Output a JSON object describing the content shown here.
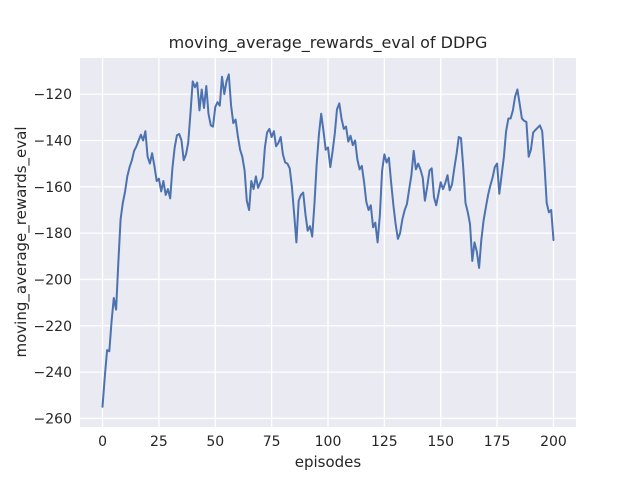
{
  "chart_data": {
    "type": "line",
    "title": "moving_average_rewards_eval of DDPG",
    "xlabel": "episodes",
    "ylabel": "moving_average_rewards_eval",
    "xlim": [
      -10,
      210
    ],
    "ylim": [
      -263.7,
      -104.4
    ],
    "x_ticks": [
      0,
      25,
      50,
      75,
      100,
      125,
      150,
      175,
      200
    ],
    "x_tick_labels": [
      "0",
      "25",
      "50",
      "75",
      "100",
      "125",
      "150",
      "175",
      "200"
    ],
    "y_ticks": [
      -120,
      -140,
      -160,
      -180,
      -200,
      -220,
      -240,
      -260
    ],
    "y_tick_labels": [
      "−120",
      "−140",
      "−160",
      "−180",
      "−200",
      "−220",
      "−240",
      "−260"
    ],
    "grid": true,
    "legend": false,
    "style": {
      "figure_bg": "#ffffff",
      "axes_bg": "#eaeaf2",
      "grid_color": "#ffffff",
      "line_color": "#4c72b0",
      "line_width": 2,
      "text_color": "#262626"
    },
    "series": [
      {
        "name": "moving_average_rewards_eval",
        "x": [
          0,
          1,
          2,
          3,
          4,
          5,
          6,
          7,
          8,
          9,
          10,
          11,
          12,
          13,
          14,
          15,
          16,
          17,
          18,
          19,
          20,
          21,
          22,
          23,
          24,
          25,
          26,
          27,
          28,
          29,
          30,
          31,
          32,
          33,
          34,
          35,
          36,
          37,
          38,
          39,
          40,
          41,
          42,
          43,
          44,
          45,
          46,
          47,
          48,
          49,
          50,
          51,
          52,
          53,
          54,
          55,
          56,
          57,
          58,
          59,
          60,
          61,
          62,
          63,
          64,
          65,
          66,
          67,
          68,
          69,
          70,
          71,
          72,
          73,
          74,
          75,
          76,
          77,
          78,
          79,
          80,
          81,
          82,
          83,
          84,
          85,
          86,
          87,
          88,
          89,
          90,
          91,
          92,
          93,
          94,
          95,
          96,
          97,
          98,
          99,
          100,
          101,
          102,
          103,
          104,
          105,
          106,
          107,
          108,
          109,
          110,
          111,
          112,
          113,
          114,
          115,
          116,
          117,
          118,
          119,
          120,
          121,
          122,
          123,
          124,
          125,
          126,
          127,
          128,
          129,
          130,
          131,
          132,
          133,
          134,
          135,
          136,
          137,
          138,
          139,
          140,
          141,
          142,
          143,
          144,
          145,
          146,
          147,
          148,
          149,
          150,
          151,
          152,
          153,
          154,
          155,
          156,
          157,
          158,
          159,
          160,
          161,
          162,
          163,
          164,
          165,
          166,
          167,
          168,
          169,
          170,
          171,
          172,
          173,
          174,
          175,
          176,
          177,
          178,
          179,
          180,
          181,
          182,
          183,
          184,
          185,
          186,
          187,
          188,
          189,
          190,
          191,
          192,
          193,
          194,
          195,
          196,
          197,
          198,
          199,
          200
        ],
        "y": [
          -255,
          -242,
          -230.5,
          -231,
          -218,
          -208,
          -213,
          -193,
          -174,
          -167,
          -162,
          -155.5,
          -151.5,
          -148.5,
          -144.5,
          -142.5,
          -140,
          -137.5,
          -140,
          -136,
          -147,
          -150,
          -145.5,
          -151,
          -157.5,
          -156.5,
          -162,
          -157.5,
          -163.5,
          -161,
          -165,
          -152,
          -143,
          -137.8,
          -137.2,
          -140,
          -148.5,
          -146,
          -141,
          -128,
          -114.5,
          -117,
          -115,
          -127,
          -118,
          -126,
          -116.5,
          -128.5,
          -133.5,
          -134,
          -125.5,
          -123.5,
          -125,
          -112.5,
          -120,
          -114.5,
          -111.5,
          -125,
          -132.5,
          -131,
          -138,
          -144,
          -147,
          -153,
          -166,
          -170,
          -157.5,
          -161,
          -155.5,
          -160.5,
          -158,
          -156,
          -143,
          -136.5,
          -135,
          -138.5,
          -136,
          -142.5,
          -141,
          -138.5,
          -146,
          -149.5,
          -150,
          -152,
          -160,
          -172,
          -184,
          -166,
          -163.5,
          -162.5,
          -172,
          -179,
          -177,
          -181.5,
          -167,
          -150,
          -137,
          -128.5,
          -136,
          -144,
          -143,
          -151.5,
          -145,
          -137,
          -126.5,
          -124,
          -130.5,
          -135,
          -134,
          -140.5,
          -138,
          -142,
          -140,
          -148,
          -152.5,
          -151,
          -158,
          -166.5,
          -170,
          -168,
          -177.5,
          -175.5,
          -184,
          -172,
          -153,
          -146,
          -149.5,
          -147.5,
          -158,
          -168,
          -176,
          -182.5,
          -180,
          -174,
          -170,
          -167.5,
          -161,
          -155,
          -144.5,
          -152.5,
          -150,
          -152.5,
          -156,
          -166,
          -160,
          -153,
          -152,
          -164.5,
          -168,
          -163,
          -158,
          -161,
          -158.5,
          -155,
          -161.5,
          -159,
          -152,
          -146,
          -138.5,
          -139,
          -152,
          -167,
          -171,
          -176,
          -192,
          -184,
          -188,
          -195,
          -183,
          -174.5,
          -169,
          -163.5,
          -159.5,
          -156,
          -151.5,
          -150,
          -163,
          -155,
          -147,
          -136,
          -130.5,
          -130.5,
          -127,
          -121,
          -118,
          -124,
          -130.5,
          -131.5,
          -132,
          -147,
          -144,
          -136.5,
          -135.5,
          -134.5,
          -133.5,
          -136,
          -150,
          -167,
          -171,
          -170,
          -183
        ]
      }
    ]
  }
}
